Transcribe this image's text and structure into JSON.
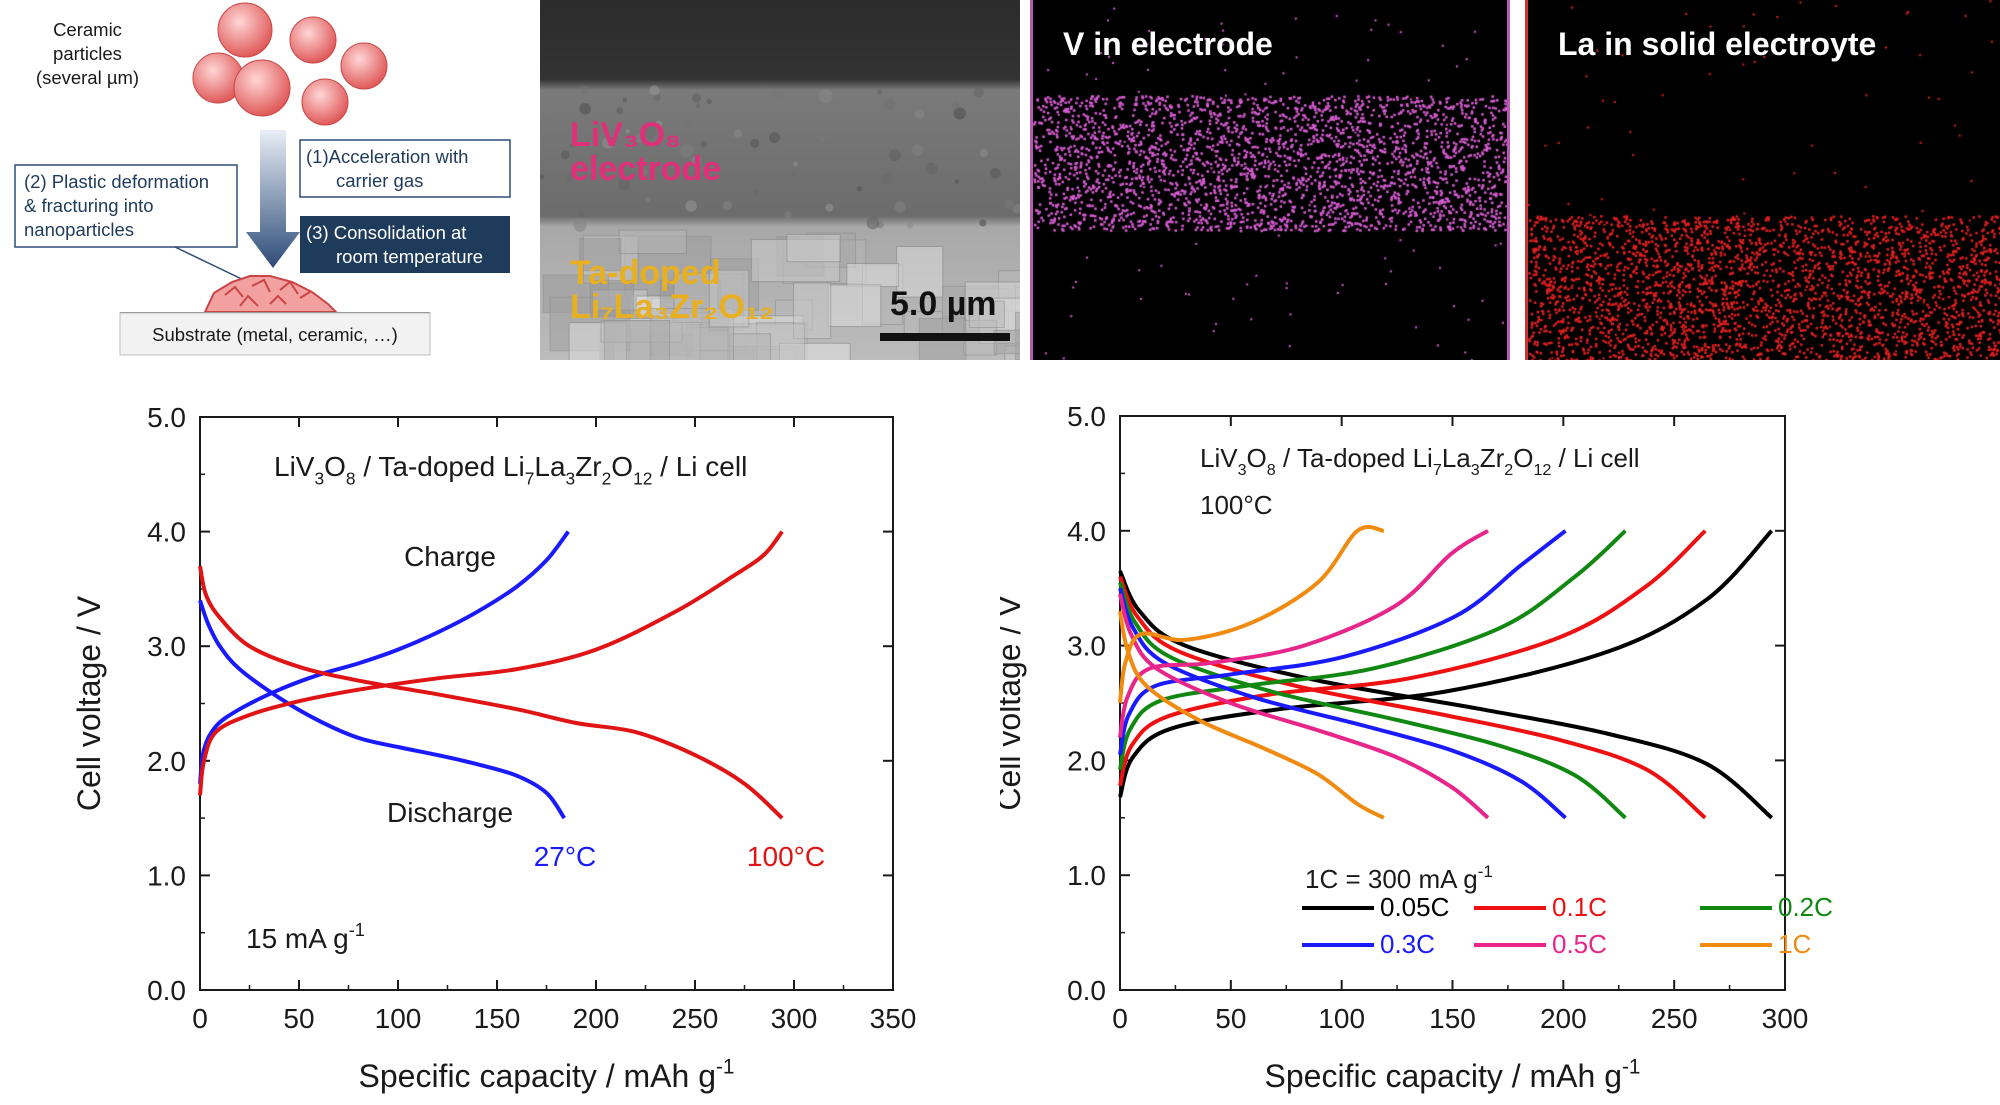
{
  "schematic": {
    "particles_label": [
      "Ceramic",
      "particles",
      "(several µm)"
    ],
    "step1": [
      "(1)Acceleration with",
      "carrier gas"
    ],
    "step2": [
      "(2) Plastic deformation",
      "& fracturing into",
      "nanoparticles"
    ],
    "step3": [
      "(3) Consolidation at",
      "room temperature"
    ],
    "substrate": "Substrate (metal, ceramic, …)",
    "colors": {
      "particle": "#e05a5a",
      "arrow": "#2d4b78",
      "step3_bg": "#1f3b5c"
    }
  },
  "sem": {
    "electrode_label": [
      "LiV₃O₈",
      "electrode"
    ],
    "electrolyte_label": [
      "Ta-doped",
      "Li₇La₃Zr₂O₁₂"
    ],
    "scale_bar": "5.0 µm",
    "colors": {
      "electrode_text": "#e0307a",
      "electrolyte_text": "#e8b020"
    }
  },
  "eds_v": {
    "title": "V in electrode",
    "dot_color": "#d65cd2"
  },
  "eds_la": {
    "title": "La in solid electroyte",
    "dot_color": "#e02020"
  },
  "chart_data": [
    {
      "type": "line",
      "title": "",
      "annotation_cell": "LiV3O8 / Ta-doped Li7La3Zr2O12 / Li cell",
      "annotation_rate": "15 mA g-1",
      "label_charge": "Charge",
      "label_discharge": "Discharge",
      "xlabel": "Specific capacity / mAh g-1",
      "ylabel": "Cell voltage / V",
      "xlim": [
        0,
        350
      ],
      "ylim": [
        0.0,
        5.0
      ],
      "xticks": [
        "0",
        "50",
        "100",
        "150",
        "200",
        "250",
        "300",
        "350"
      ],
      "yticks": [
        "0.0",
        "1.0",
        "2.0",
        "3.0",
        "4.0",
        "5.0"
      ],
      "series": [
        {
          "name": "27°C",
          "color": "#1a1aff",
          "charge": [
            [
              0,
              1.8
            ],
            [
              2,
              2.1
            ],
            [
              8,
              2.3
            ],
            [
              20,
              2.45
            ],
            [
              40,
              2.62
            ],
            [
              60,
              2.75
            ],
            [
              80,
              2.85
            ],
            [
              100,
              2.97
            ],
            [
              120,
              3.12
            ],
            [
              140,
              3.3
            ],
            [
              160,
              3.52
            ],
            [
              175,
              3.75
            ],
            [
              186,
              4.0
            ]
          ],
          "discharge": [
            [
              0,
              3.4
            ],
            [
              4,
              3.2
            ],
            [
              10,
              3.0
            ],
            [
              20,
              2.8
            ],
            [
              40,
              2.55
            ],
            [
              60,
              2.35
            ],
            [
              80,
              2.2
            ],
            [
              100,
              2.12
            ],
            [
              120,
              2.05
            ],
            [
              140,
              1.97
            ],
            [
              160,
              1.87
            ],
            [
              175,
              1.72
            ],
            [
              184,
              1.5
            ]
          ]
        },
        {
          "name": "100°C",
          "color": "#e01414",
          "charge": [
            [
              0,
              1.7
            ],
            [
              2,
              2.0
            ],
            [
              8,
              2.25
            ],
            [
              25,
              2.4
            ],
            [
              50,
              2.52
            ],
            [
              80,
              2.62
            ],
            [
              120,
              2.72
            ],
            [
              160,
              2.8
            ],
            [
              200,
              2.97
            ],
            [
              240,
              3.3
            ],
            [
              270,
              3.62
            ],
            [
              285,
              3.8
            ],
            [
              294,
              4.0
            ]
          ],
          "discharge": [
            [
              0,
              3.7
            ],
            [
              3,
              3.45
            ],
            [
              10,
              3.25
            ],
            [
              25,
              3.0
            ],
            [
              50,
              2.82
            ],
            [
              80,
              2.7
            ],
            [
              120,
              2.58
            ],
            [
              160,
              2.45
            ],
            [
              190,
              2.33
            ],
            [
              220,
              2.25
            ],
            [
              250,
              2.05
            ],
            [
              275,
              1.8
            ],
            [
              294,
              1.5
            ]
          ]
        }
      ]
    },
    {
      "type": "line",
      "title": "",
      "annotation_cell": "LiV3O8 / Ta-doped Li7La3Zr2O12 / Li cell",
      "annotation_temp": "100°C",
      "annotation_rate": "1C = 300 mA g-1",
      "xlabel": "Specific capacity / mAh g-1",
      "ylabel": "Cell voltage / V",
      "xlim": [
        0,
        300
      ],
      "ylim": [
        0.0,
        5.0
      ],
      "xticks": [
        "0",
        "50",
        "100",
        "150",
        "200",
        "250",
        "300"
      ],
      "yticks": [
        "0.0",
        "1.0",
        "2.0",
        "3.0",
        "4.0",
        "5.0"
      ],
      "legend_position": "bottom-right",
      "series": [
        {
          "name": "0.05C",
          "color": "#000000",
          "qmax": 294,
          "c0": 1.68,
          "cmid": 2.6,
          "d0": 3.65,
          "dend": 1.5
        },
        {
          "name": "0.1C",
          "color": "#ee1111",
          "qmax": 264,
          "c0": 1.78,
          "cmid": 2.72,
          "d0": 3.6,
          "dend": 1.5
        },
        {
          "name": "0.2C",
          "color": "#118811",
          "qmax": 228,
          "c0": 1.92,
          "cmid": 2.8,
          "d0": 3.55,
          "dend": 1.5
        },
        {
          "name": "0.3C",
          "color": "#1a1aff",
          "qmax": 201,
          "c0": 2.05,
          "cmid": 2.9,
          "d0": 3.5,
          "dend": 1.5
        },
        {
          "name": "0.5C",
          "color": "#e8268a",
          "qmax": 166,
          "c0": 2.2,
          "cmid": 3.0,
          "d0": 3.45,
          "dend": 1.5
        },
        {
          "name": "1C",
          "color": "#f08a10",
          "qmax": 119,
          "c0": 2.5,
          "cmid": 3.2,
          "d0": 3.3,
          "dend": 1.5
        }
      ]
    }
  ]
}
